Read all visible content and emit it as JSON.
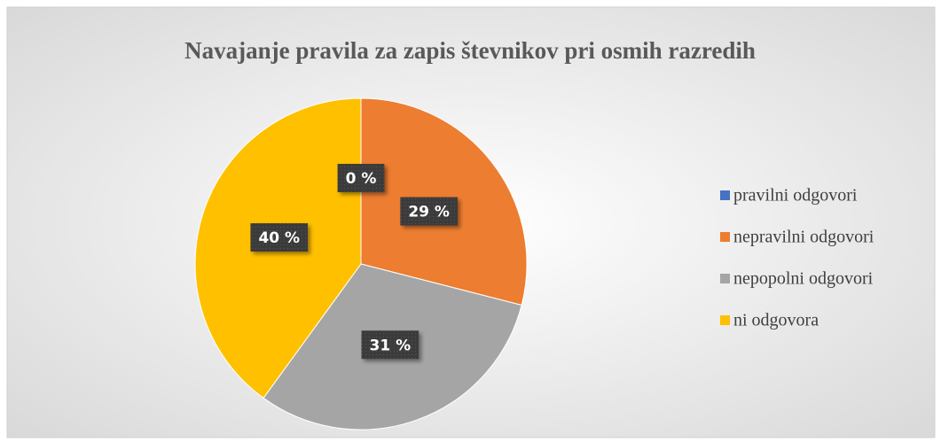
{
  "chart_data": {
    "type": "pie",
    "title": "Navajanje pravila za zapis števnikov pri osmih razredih",
    "categories": [
      "pravilni odgovori",
      "nepravilni odgovori",
      "nepopolni odgovori",
      "ni odgovora"
    ],
    "values": [
      0,
      29,
      31,
      40
    ],
    "value_labels": [
      "0 %",
      "29 %",
      "31 %",
      "40 %"
    ],
    "colors": [
      "#4472c4",
      "#ed7d31",
      "#a5a5a5",
      "#ffc000"
    ],
    "legend": "right"
  }
}
